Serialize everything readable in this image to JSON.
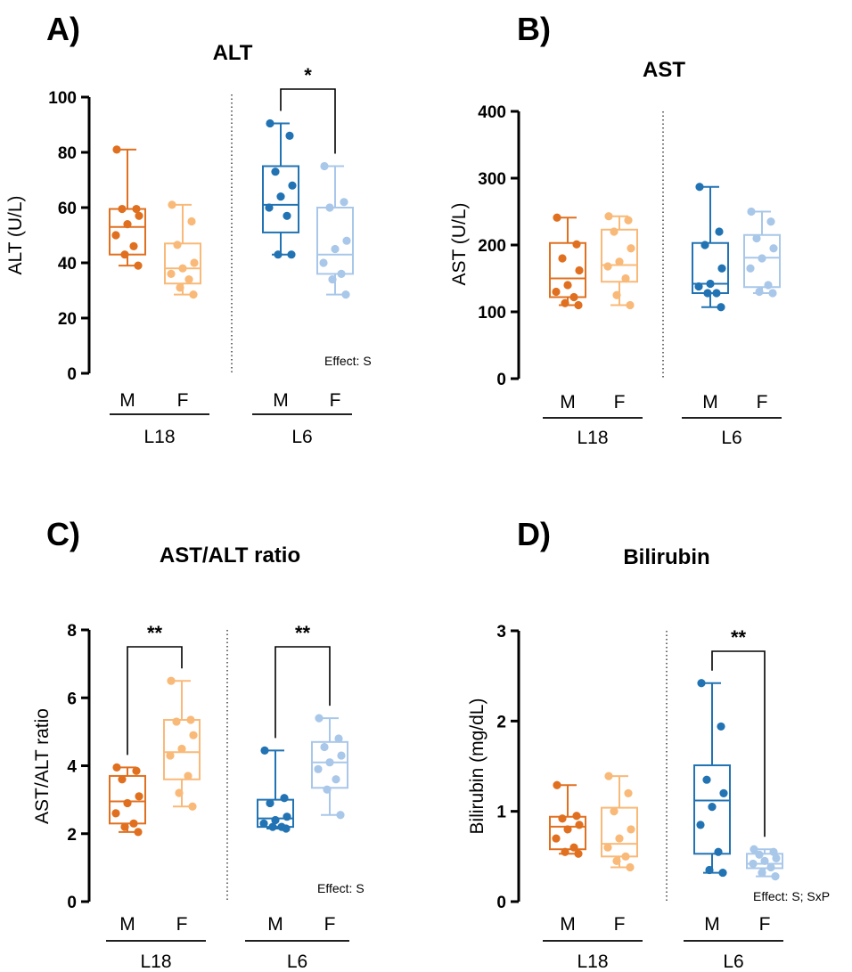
{
  "colors": {
    "L18_M": "#e07020",
    "L18_F": "#f9b978",
    "L6_M": "#2173b3",
    "L6_F": "#a9c7e9"
  },
  "chart_data": [
    {
      "type": "box",
      "panel_label": "A)",
      "title": "ALT",
      "ylabel": "ALT (U/L)",
      "ylim": [
        0,
        100
      ],
      "yticks": [
        "0",
        "20",
        "40",
        "60",
        "80",
        "100"
      ],
      "categories": [
        "M",
        "F",
        "M",
        "F"
      ],
      "groups": [
        "L18",
        "L6"
      ],
      "effect": "Effect: S",
      "significance": [
        {
          "between": [
            2,
            3
          ],
          "label": "*"
        }
      ],
      "series": [
        {
          "group": "L18",
          "sex": "M",
          "color_key": "L18_M",
          "min": 39,
          "q1": 43,
          "median": 53,
          "q3": 59.5,
          "max": 81,
          "points": [
            81,
            59.5,
            59.5,
            57,
            54,
            50,
            46,
            43,
            39
          ]
        },
        {
          "group": "L18",
          "sex": "F",
          "color_key": "L18_F",
          "min": 28.5,
          "q1": 32.5,
          "median": 38,
          "q3": 47,
          "max": 61,
          "points": [
            61,
            55,
            46.5,
            40,
            38,
            36,
            34,
            31,
            28.5
          ]
        },
        {
          "group": "L6",
          "sex": "M",
          "color_key": "L6_M",
          "min": 43,
          "q1": 51,
          "median": 61,
          "q3": 75,
          "max": 90.5,
          "points": [
            90.5,
            86,
            73,
            68,
            64,
            60,
            57,
            43,
            43
          ]
        },
        {
          "group": "L6",
          "sex": "F",
          "color_key": "L6_F",
          "min": 28.5,
          "q1": 36,
          "median": 43,
          "q3": 60,
          "max": 75,
          "points": [
            75,
            62,
            60,
            48,
            45,
            40,
            36,
            34,
            28.5
          ]
        }
      ]
    },
    {
      "type": "box",
      "panel_label": "B)",
      "title": "AST",
      "ylabel": "AST (U/L)",
      "ylim": [
        0,
        400
      ],
      "yticks": [
        "0",
        "100",
        "200",
        "300",
        "400"
      ],
      "categories": [
        "M",
        "F",
        "M",
        "F"
      ],
      "groups": [
        "L18",
        "L6"
      ],
      "effect": "",
      "significance": [],
      "series": [
        {
          "group": "L18",
          "sex": "M",
          "color_key": "L18_M",
          "min": 110,
          "q1": 122,
          "median": 150,
          "q3": 203,
          "max": 241,
          "points": [
            241,
            201,
            180,
            162,
            140,
            130,
            122,
            113,
            110
          ]
        },
        {
          "group": "L18",
          "sex": "F",
          "color_key": "L18_F",
          "min": 110,
          "q1": 145,
          "median": 170,
          "q3": 223,
          "max": 243,
          "points": [
            243,
            237,
            220,
            195,
            175,
            168,
            150,
            125,
            110
          ]
        },
        {
          "group": "L6",
          "sex": "M",
          "color_key": "L6_M",
          "min": 107,
          "q1": 128,
          "median": 142,
          "q3": 203,
          "max": 287,
          "points": [
            287,
            220,
            200,
            165,
            142,
            138,
            128,
            128,
            107
          ]
        },
        {
          "group": "L6",
          "sex": "F",
          "color_key": "L6_F",
          "min": 128,
          "q1": 137,
          "median": 181,
          "q3": 215,
          "max": 250,
          "points": [
            250,
            235,
            210,
            195,
            180,
            165,
            140,
            130,
            128
          ]
        }
      ]
    },
    {
      "type": "box",
      "panel_label": "C)",
      "title": "AST/ALT ratio",
      "ylabel": "AST/ALT ratio",
      "ylim": [
        0,
        8
      ],
      "yticks": [
        "0",
        "2",
        "4",
        "6",
        "8"
      ],
      "categories": [
        "M",
        "F",
        "M",
        "F"
      ],
      "groups": [
        "L18",
        "L6"
      ],
      "effect": "Effect: S",
      "significance": [
        {
          "between": [
            0,
            1
          ],
          "label": "**"
        },
        {
          "between": [
            2,
            3
          ],
          "label": "**"
        }
      ],
      "series": [
        {
          "group": "L18",
          "sex": "M",
          "color_key": "L18_M",
          "min": 2.05,
          "q1": 2.3,
          "median": 2.95,
          "q3": 3.7,
          "max": 3.95,
          "points": [
            3.95,
            3.85,
            3.6,
            3.1,
            2.9,
            2.6,
            2.3,
            2.2,
            2.05
          ]
        },
        {
          "group": "L18",
          "sex": "F",
          "color_key": "L18_F",
          "min": 2.8,
          "q1": 3.6,
          "median": 4.4,
          "q3": 5.35,
          "max": 6.5,
          "points": [
            6.5,
            5.35,
            5.3,
            4.9,
            4.5,
            4.3,
            3.7,
            3.2,
            2.8
          ]
        },
        {
          "group": "L6",
          "sex": "M",
          "color_key": "L6_M",
          "min": 2.15,
          "q1": 2.2,
          "median": 2.45,
          "q3": 3.0,
          "max": 4.45,
          "points": [
            4.45,
            3.05,
            2.9,
            2.5,
            2.4,
            2.3,
            2.2,
            2.2,
            2.15
          ]
        },
        {
          "group": "L6",
          "sex": "F",
          "color_key": "L6_F",
          "min": 2.55,
          "q1": 3.35,
          "median": 4.1,
          "q3": 4.7,
          "max": 5.4,
          "points": [
            5.4,
            4.8,
            4.55,
            4.3,
            4.1,
            3.9,
            3.6,
            3.3,
            2.55
          ]
        }
      ]
    },
    {
      "type": "box",
      "panel_label": "D)",
      "title": "Bilirubin",
      "ylabel": "Bilirubin (mg/dL)",
      "ylim": [
        0,
        3
      ],
      "yticks": [
        "0",
        "1",
        "2",
        "3"
      ],
      "categories": [
        "M",
        "F",
        "M",
        "F"
      ],
      "groups": [
        "L18",
        "L6"
      ],
      "effect": "Effect: S;  SxP",
      "significance": [
        {
          "between": [
            2,
            3
          ],
          "label": "**"
        }
      ],
      "series": [
        {
          "group": "L18",
          "sex": "M",
          "color_key": "L18_M",
          "min": 0.53,
          "q1": 0.58,
          "median": 0.83,
          "q3": 0.94,
          "max": 1.29,
          "points": [
            1.29,
            0.95,
            0.92,
            0.85,
            0.8,
            0.7,
            0.6,
            0.55,
            0.53
          ]
        },
        {
          "group": "L18",
          "sex": "F",
          "color_key": "L18_F",
          "min": 0.38,
          "q1": 0.5,
          "median": 0.64,
          "q3": 1.04,
          "max": 1.39,
          "points": [
            1.39,
            1.2,
            1.0,
            0.8,
            0.7,
            0.6,
            0.5,
            0.45,
            0.38
          ]
        },
        {
          "group": "L6",
          "sex": "M",
          "color_key": "L6_M",
          "min": 0.32,
          "q1": 0.53,
          "median": 1.12,
          "q3": 1.51,
          "max": 2.42,
          "points": [
            2.42,
            1.94,
            1.35,
            1.2,
            1.05,
            0.85,
            0.55,
            0.35,
            0.32
          ]
        },
        {
          "group": "L6",
          "sex": "F",
          "color_key": "L6_F",
          "min": 0.28,
          "q1": 0.37,
          "median": 0.42,
          "q3": 0.53,
          "max": 0.58,
          "points": [
            0.58,
            0.55,
            0.52,
            0.48,
            0.45,
            0.42,
            0.38,
            0.32,
            0.28
          ]
        }
      ]
    }
  ]
}
